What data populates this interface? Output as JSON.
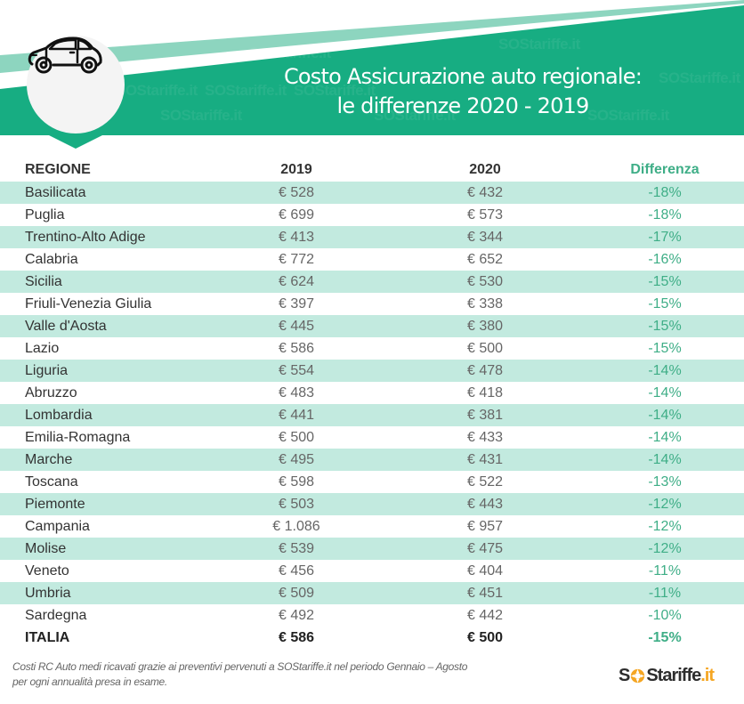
{
  "header": {
    "title_line1": "Costo Assicurazione auto regionale:",
    "title_line2": "le differenze 2020 - 2019",
    "icon": "car-icon",
    "watermark_text": "SOStariffe.it"
  },
  "colors": {
    "brand_green": "#17ad82",
    "light_green": "#8dd5bf",
    "stripe": "#c2eadf",
    "diff_text": "#3fae87",
    "logo_orange": "#f5a623"
  },
  "table": {
    "columns": [
      "REGIONE",
      "2019",
      "2020",
      "Differenza"
    ],
    "rows": [
      {
        "region": "Basilicata",
        "y2019": "€ 528",
        "y2020": "€ 432",
        "diff": "-18%"
      },
      {
        "region": "Puglia",
        "y2019": "€ 699",
        "y2020": "€ 573",
        "diff": "-18%"
      },
      {
        "region": "Trentino-Alto Adige",
        "y2019": "€ 413",
        "y2020": "€ 344",
        "diff": "-17%"
      },
      {
        "region": "Calabria",
        "y2019": "€ 772",
        "y2020": "€ 652",
        "diff": "-16%"
      },
      {
        "region": "Sicilia",
        "y2019": "€ 624",
        "y2020": "€ 530",
        "diff": "-15%"
      },
      {
        "region": "Friuli-Venezia Giulia",
        "y2019": "€ 397",
        "y2020": "€ 338",
        "diff": "-15%"
      },
      {
        "region": "Valle d'Aosta",
        "y2019": "€ 445",
        "y2020": "€ 380",
        "diff": "-15%"
      },
      {
        "region": "Lazio",
        "y2019": "€ 586",
        "y2020": "€ 500",
        "diff": "-15%"
      },
      {
        "region": "Liguria",
        "y2019": "€ 554",
        "y2020": "€ 478",
        "diff": "-14%"
      },
      {
        "region": "Abruzzo",
        "y2019": "€ 483",
        "y2020": "€ 418",
        "diff": "-14%"
      },
      {
        "region": "Lombardia",
        "y2019": "€ 441",
        "y2020": "€ 381",
        "diff": "-14%"
      },
      {
        "region": "Emilia-Romagna",
        "y2019": "€ 500",
        "y2020": "€ 433",
        "diff": "-14%"
      },
      {
        "region": "Marche",
        "y2019": "€ 495",
        "y2020": "€ 431",
        "diff": "-14%"
      },
      {
        "region": "Toscana",
        "y2019": "€ 598",
        "y2020": "€ 522",
        "diff": "-13%"
      },
      {
        "region": "Piemonte",
        "y2019": "€ 503",
        "y2020": "€ 443",
        "diff": "-12%"
      },
      {
        "region": "Campania",
        "y2019": "€ 1.086",
        "y2020": "€ 957",
        "diff": "-12%"
      },
      {
        "region": "Molise",
        "y2019": "€ 539",
        "y2020": "€ 475",
        "diff": "-12%"
      },
      {
        "region": "Veneto",
        "y2019": "€ 456",
        "y2020": "€ 404",
        "diff": "-11%"
      },
      {
        "region": "Umbria",
        "y2019": "€ 509",
        "y2020": "€ 451",
        "diff": "-11%"
      },
      {
        "region": "Sardegna",
        "y2019": "€ 492",
        "y2020": "€ 442",
        "diff": "-10%"
      }
    ],
    "total": {
      "region": "ITALIA",
      "y2019": "€ 586",
      "y2020": "€ 500",
      "diff": "-15%"
    }
  },
  "footer": {
    "note_line1": "Costi RC Auto medi ricavati grazie ai preventivi pervenuti a SOStariffe.it nel periodo Gennaio – Agosto",
    "note_line2": "per ogni annualità presa in esame.",
    "logo": {
      "part1": "S",
      "part2": "Stariffe",
      "part3": ".it"
    }
  }
}
